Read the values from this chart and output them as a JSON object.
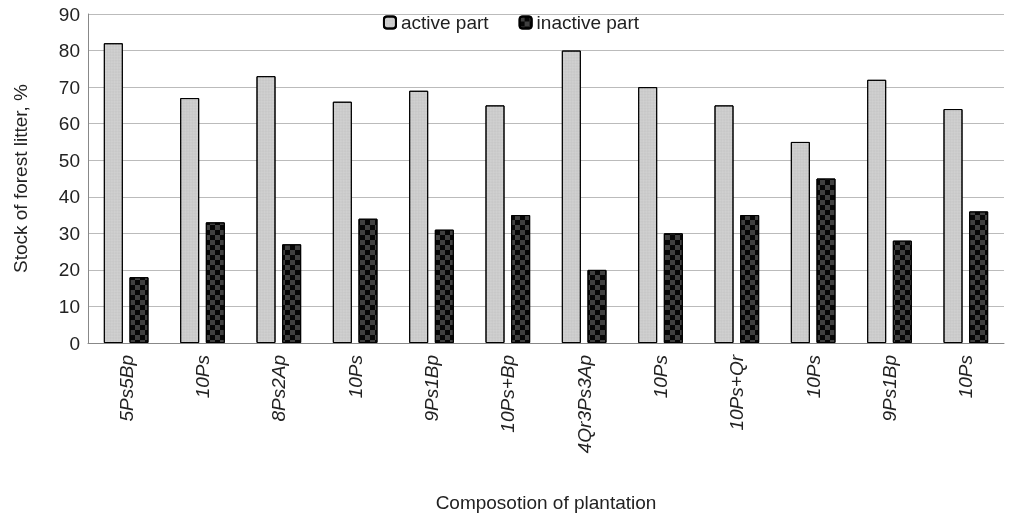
{
  "chart_data": {
    "type": "bar",
    "xlabel": "Composotion of plantation",
    "ylabel": "Stock of forest litter, %",
    "categories": [
      "5Ps5Bp",
      "10Ps",
      "8Ps2Ap",
      "10Ps",
      "9Ps1Bp",
      "10Ps+Bp",
      "4Qr3Ps3Ap",
      "10Ps",
      "10Ps+Qr",
      "10Ps",
      "9Ps1Bp",
      "10Ps"
    ],
    "series": [
      {
        "name": "active part",
        "color": "#c8c8c8",
        "values": [
          82,
          67,
          73,
          66,
          69,
          65,
          80,
          70,
          65,
          55,
          72,
          64
        ]
      },
      {
        "name": "inactive part",
        "color": "#404040",
        "values": [
          18,
          33,
          27,
          34,
          31,
          35,
          20,
          30,
          35,
          45,
          28,
          36
        ]
      }
    ],
    "ylim": [
      0,
      90
    ],
    "yticks": [
      0,
      10,
      20,
      30,
      40,
      50,
      60,
      70,
      80,
      90
    ],
    "grid": "y",
    "legend": "top"
  }
}
